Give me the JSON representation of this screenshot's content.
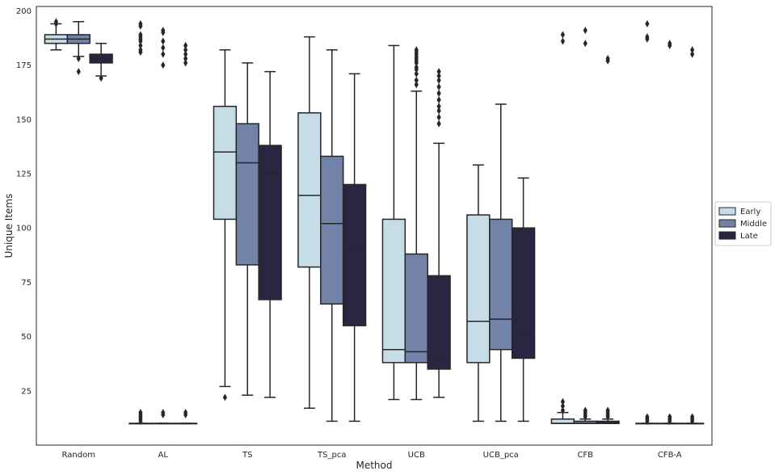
{
  "chart_data": {
    "type": "box",
    "xlabel": "Method",
    "ylabel": "Unique Items",
    "ylim": [
      0,
      202
    ],
    "yticks": [
      25,
      50,
      75,
      100,
      125,
      150,
      175,
      200
    ],
    "grid": false,
    "legend_position": "right-center",
    "categories": [
      "Random",
      "AL",
      "TS",
      "TS_pca",
      "UCB",
      "UCB_pca",
      "CFB",
      "CFB-A"
    ],
    "series": [
      {
        "name": "Early",
        "color": "#c6dce6",
        "boxes": [
          {
            "whisker_low": 182,
            "q1": 185,
            "median": 187,
            "q3": 189,
            "whisker_high": 194,
            "outliers": [
              194,
              195
            ]
          },
          {
            "whisker_low": 10,
            "q1": 10,
            "median": 10,
            "q3": 10,
            "whisker_high": 10,
            "outliers": [
              11,
              12,
              13,
              14,
              15,
              181,
              182,
              184,
              186,
              187,
              188,
              189,
              193,
              194
            ]
          },
          {
            "whisker_low": 27,
            "q1": 104,
            "median": 135,
            "q3": 156,
            "whisker_high": 182,
            "outliers": [
              22
            ]
          },
          {
            "whisker_low": 17,
            "q1": 82,
            "median": 115,
            "q3": 153,
            "whisker_high": 188,
            "outliers": []
          },
          {
            "whisker_low": 21,
            "q1": 38,
            "median": 44,
            "q3": 104,
            "whisker_high": 184,
            "outliers": []
          },
          {
            "whisker_low": 11,
            "q1": 38,
            "median": 57,
            "q3": 106,
            "whisker_high": 129,
            "outliers": []
          },
          {
            "whisker_low": 10,
            "q1": 10,
            "median": 10,
            "q3": 12,
            "whisker_high": 15,
            "outliers": [
              16,
              18,
              20,
              186,
              189
            ]
          },
          {
            "whisker_low": 10,
            "q1": 10,
            "median": 10,
            "q3": 10,
            "whisker_high": 10,
            "outliers": [
              11,
              12,
              13,
              187,
              188,
              194
            ]
          }
        ]
      },
      {
        "name": "Middle",
        "color": "#7282a8",
        "boxes": [
          {
            "whisker_low": 179,
            "q1": 185,
            "median": 187,
            "q3": 189,
            "whisker_high": 195,
            "outliers": [
              172,
              178
            ]
          },
          {
            "whisker_low": 10,
            "q1": 10,
            "median": 10,
            "q3": 10,
            "whisker_high": 10,
            "outliers": [
              14,
              15,
              175,
              180,
              183,
              186,
              190,
              191
            ]
          },
          {
            "whisker_low": 23,
            "q1": 83,
            "median": 130,
            "q3": 148,
            "whisker_high": 176,
            "outliers": []
          },
          {
            "whisker_low": 11,
            "q1": 65,
            "median": 102,
            "q3": 133,
            "whisker_high": 182,
            "outliers": []
          },
          {
            "whisker_low": 21,
            "q1": 38,
            "median": 43,
            "q3": 88,
            "whisker_high": 163,
            "outliers": [
              166,
              168,
              171,
              173,
              174,
              176,
              177,
              178,
              179,
              180,
              181,
              182
            ]
          },
          {
            "whisker_low": 11,
            "q1": 44,
            "median": 58,
            "q3": 104,
            "whisker_high": 157,
            "outliers": []
          },
          {
            "whisker_low": 10,
            "q1": 10,
            "median": 10,
            "q3": 11,
            "whisker_high": 12,
            "outliers": [
              13,
              14,
              15,
              16,
              185,
              191
            ]
          },
          {
            "whisker_low": 10,
            "q1": 10,
            "median": 10,
            "q3": 10,
            "whisker_high": 10,
            "outliers": [
              11,
              12,
              13,
              184,
              185
            ]
          }
        ]
      },
      {
        "name": "Late",
        "color": "#2a2540",
        "boxes": [
          {
            "whisker_low": 170,
            "q1": 176,
            "median": 178,
            "q3": 180,
            "whisker_high": 185,
            "outliers": [
              169
            ]
          },
          {
            "whisker_low": 10,
            "q1": 10,
            "median": 10,
            "q3": 10,
            "whisker_high": 10,
            "outliers": [
              14,
              15,
              176,
              178,
              180,
              182,
              184
            ]
          },
          {
            "whisker_low": 22,
            "q1": 67,
            "median": 125,
            "q3": 138,
            "whisker_high": 172,
            "outliers": []
          },
          {
            "whisker_low": 11,
            "q1": 55,
            "median": 90,
            "q3": 120,
            "whisker_high": 171,
            "outliers": []
          },
          {
            "whisker_low": 22,
            "q1": 35,
            "median": 40,
            "q3": 78,
            "whisker_high": 139,
            "outliers": [
              148,
              151,
              154,
              156,
              159,
              162,
              165,
              168,
              170,
              172
            ]
          },
          {
            "whisker_low": 11,
            "q1": 40,
            "median": 52,
            "q3": 100,
            "whisker_high": 123,
            "outliers": []
          },
          {
            "whisker_low": 10,
            "q1": 10,
            "median": 10,
            "q3": 11,
            "whisker_high": 12,
            "outliers": [
              13,
              14,
              15,
              16,
              177,
              178
            ]
          },
          {
            "whisker_low": 10,
            "q1": 10,
            "median": 10,
            "q3": 10,
            "whisker_high": 10,
            "outliers": [
              11,
              12,
              13,
              180,
              182
            ]
          }
        ]
      }
    ]
  }
}
